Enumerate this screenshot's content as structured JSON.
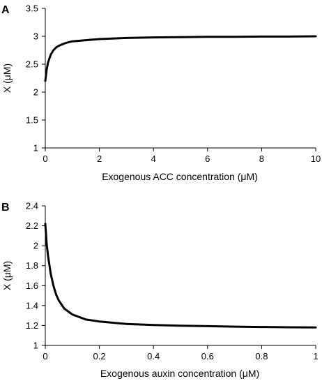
{
  "chart_data": [
    {
      "type": "line",
      "panel_label": "A",
      "xlabel": "Exogenous ACC concentration (μM)",
      "ylabel": "X (μM)",
      "xlim": [
        0,
        10
      ],
      "ylim": [
        1,
        3.5
      ],
      "xticks": [
        "0",
        "2",
        "4",
        "6",
        "8",
        "10"
      ],
      "yticks": [
        "1",
        "1.5",
        "2",
        "2.5",
        "3",
        "3.5"
      ],
      "x_tick_values": [
        0,
        2,
        4,
        6,
        8,
        10
      ],
      "y_tick_values": [
        1,
        1.5,
        2,
        2.5,
        3,
        3.5
      ],
      "grid": false,
      "series": [
        {
          "x": [
            0,
            0.05,
            0.1,
            0.2,
            0.3,
            0.4,
            0.5,
            0.75,
            1,
            1.5,
            2,
            3,
            4,
            5,
            6,
            7,
            8,
            9,
            10
          ],
          "y": [
            2.2,
            2.4,
            2.53,
            2.67,
            2.75,
            2.8,
            2.83,
            2.88,
            2.91,
            2.93,
            2.95,
            2.97,
            2.98,
            2.985,
            2.99,
            2.99,
            2.995,
            2.995,
            3.0
          ]
        }
      ]
    },
    {
      "type": "line",
      "panel_label": "B",
      "xlabel": "Exogenous auxin concentration (μM)",
      "ylabel": "X (μM)",
      "xlim": [
        0,
        1
      ],
      "ylim": [
        1,
        2.4
      ],
      "xticks": [
        "0",
        "0.2",
        "0.4",
        "0.6",
        "0.8",
        "1"
      ],
      "yticks": [
        "1",
        "1.2",
        "1.4",
        "1.6",
        "1.8",
        "2",
        "2.2",
        "2.4"
      ],
      "x_tick_values": [
        0,
        0.2,
        0.4,
        0.6,
        0.8,
        1
      ],
      "y_tick_values": [
        1,
        1.2,
        1.4,
        1.6,
        1.8,
        2,
        2.2,
        2.4
      ],
      "grid": false,
      "series": [
        {
          "x": [
            0,
            0.005,
            0.01,
            0.02,
            0.03,
            0.04,
            0.05,
            0.07,
            0.1,
            0.15,
            0.2,
            0.3,
            0.4,
            0.5,
            0.6,
            0.7,
            0.8,
            0.9,
            1.0
          ],
          "y": [
            2.22,
            2.02,
            1.9,
            1.72,
            1.6,
            1.51,
            1.45,
            1.37,
            1.31,
            1.26,
            1.24,
            1.215,
            1.205,
            1.198,
            1.193,
            1.188,
            1.185,
            1.182,
            1.18
          ]
        }
      ]
    }
  ]
}
